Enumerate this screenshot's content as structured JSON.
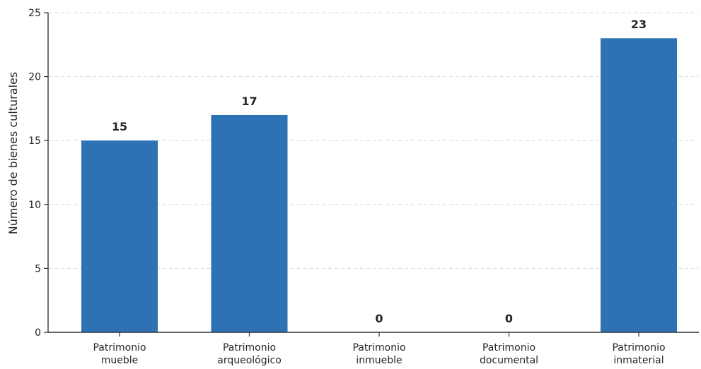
{
  "chart_data": {
    "type": "bar",
    "title": "",
    "xlabel": "",
    "ylabel": "Número de bienes culturales",
    "categories": [
      [
        "Patrimonio",
        "mueble"
      ],
      [
        "Patrimonio",
        "arqueológico"
      ],
      [
        "Patrimonio",
        "inmueble"
      ],
      [
        "Patrimonio",
        "documental"
      ],
      [
        "Patrimonio",
        "inmaterial"
      ]
    ],
    "values": [
      15,
      17,
      0,
      0,
      23
    ],
    "ylim": [
      0,
      25
    ],
    "yticks": [
      0,
      5,
      10,
      15,
      20,
      25
    ],
    "grid": "horizontal dashed",
    "legend": "none",
    "bar_color": "#2e72b6"
  }
}
